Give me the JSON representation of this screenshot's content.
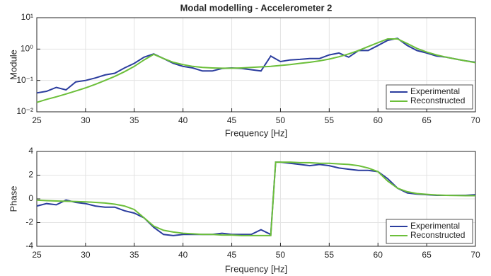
{
  "chart_data": [
    {
      "type": "line",
      "title": "Modal modelling - Accelerometer 2",
      "xlabel": "Frequency [Hz]",
      "ylabel": "Module",
      "ylog": true,
      "grid": true,
      "legend": "lower right",
      "xlim": [
        25,
        70
      ],
      "xticks": [
        25,
        30,
        35,
        40,
        45,
        50,
        55,
        60,
        65,
        70
      ],
      "ylim": [
        0.01,
        10
      ],
      "yticks": [
        {
          "value": 0.01,
          "label": "10⁻²"
        },
        {
          "value": 0.1,
          "label": "10⁻¹"
        },
        {
          "value": 1,
          "label": "10⁰"
        },
        {
          "value": 10,
          "label": "10¹"
        }
      ],
      "x": [
        25,
        26,
        27,
        28,
        29,
        30,
        31,
        32,
        33,
        34,
        35,
        36,
        37,
        38,
        39,
        40,
        41,
        42,
        43,
        44,
        45,
        46,
        47,
        48,
        49,
        50,
        51,
        52,
        53,
        54,
        55,
        56,
        57,
        58,
        59,
        60,
        61,
        62,
        63,
        64,
        65,
        66,
        67,
        68,
        69,
        70
      ],
      "series": [
        {
          "name": "Experimental",
          "color": "#2b3d9e",
          "values": [
            0.04,
            0.045,
            0.06,
            0.05,
            0.09,
            0.1,
            0.12,
            0.15,
            0.17,
            0.25,
            0.35,
            0.55,
            0.7,
            0.5,
            0.35,
            0.28,
            0.25,
            0.2,
            0.2,
            0.24,
            0.25,
            0.24,
            0.22,
            0.2,
            0.6,
            0.4,
            0.45,
            0.47,
            0.5,
            0.5,
            0.65,
            0.75,
            0.55,
            0.9,
            0.9,
            1.3,
            1.9,
            2.2,
            1.3,
            0.9,
            0.75,
            0.6,
            0.55,
            0.48,
            0.42,
            0.38
          ]
        },
        {
          "name": "Reconstructed",
          "color": "#6cbf3a",
          "values": [
            0.02,
            0.025,
            0.03,
            0.037,
            0.046,
            0.058,
            0.075,
            0.1,
            0.135,
            0.19,
            0.28,
            0.45,
            0.68,
            0.5,
            0.38,
            0.32,
            0.28,
            0.26,
            0.25,
            0.245,
            0.245,
            0.25,
            0.26,
            0.27,
            0.28,
            0.3,
            0.32,
            0.35,
            0.38,
            0.42,
            0.48,
            0.57,
            0.7,
            0.9,
            1.2,
            1.6,
            2.1,
            2.1,
            1.5,
            1.05,
            0.8,
            0.65,
            0.55,
            0.48,
            0.42,
            0.37
          ]
        }
      ]
    },
    {
      "type": "line",
      "xlabel": "Frequency [Hz]",
      "ylabel": "Phase",
      "ylog": false,
      "grid": true,
      "legend": "lower right",
      "xlim": [
        25,
        70
      ],
      "xticks": [
        25,
        30,
        35,
        40,
        45,
        50,
        55,
        60,
        65,
        70
      ],
      "ylim": [
        -4,
        4
      ],
      "yticks": [
        -4,
        -2,
        0,
        2,
        4
      ],
      "x": [
        25,
        26,
        27,
        28,
        29,
        30,
        31,
        32,
        33,
        34,
        35,
        36,
        37,
        38,
        39,
        40,
        41,
        42,
        43,
        44,
        45,
        46,
        47,
        48,
        49,
        49.5,
        50,
        51,
        52,
        53,
        54,
        55,
        56,
        57,
        58,
        59,
        60,
        61,
        62,
        63,
        64,
        65,
        66,
        67,
        68,
        69,
        70
      ],
      "series": [
        {
          "name": "Experimental",
          "color": "#2b3d9e",
          "values": [
            -0.6,
            -0.4,
            -0.5,
            -0.1,
            -0.3,
            -0.4,
            -0.6,
            -0.7,
            -0.7,
            -1.0,
            -1.2,
            -1.6,
            -2.4,
            -3.0,
            -3.1,
            -3.0,
            -3.0,
            -3.0,
            -3.0,
            -2.9,
            -3.0,
            -3.0,
            -3.0,
            -2.6,
            -3.0,
            3.1,
            3.1,
            3.0,
            2.9,
            2.8,
            2.9,
            2.8,
            2.6,
            2.5,
            2.4,
            2.4,
            2.3,
            1.7,
            0.9,
            0.5,
            0.4,
            0.35,
            0.3,
            0.3,
            0.3,
            0.3,
            0.35
          ]
        },
        {
          "name": "Reconstructed",
          "color": "#6cbf3a",
          "values": [
            -0.1,
            -0.15,
            -0.18,
            -0.2,
            -0.22,
            -0.25,
            -0.3,
            -0.35,
            -0.45,
            -0.6,
            -0.9,
            -1.6,
            -2.3,
            -2.65,
            -2.8,
            -2.9,
            -2.95,
            -3.0,
            -3.0,
            -3.05,
            -3.05,
            -3.1,
            -3.1,
            -3.1,
            -3.1,
            3.1,
            3.1,
            3.1,
            3.05,
            3.05,
            3.0,
            3.0,
            2.95,
            2.9,
            2.8,
            2.6,
            2.3,
            1.5,
            0.9,
            0.6,
            0.45,
            0.38,
            0.33,
            0.3,
            0.28,
            0.27,
            0.27
          ]
        }
      ]
    }
  ]
}
